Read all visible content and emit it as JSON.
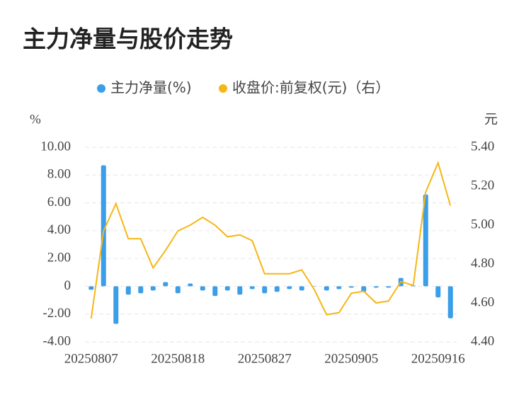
{
  "chart_data": {
    "type": "bar_line",
    "title": "主力净量与股价走势",
    "y_label": "%",
    "y2_label": "元",
    "categories": [
      "20250807",
      null,
      null,
      null,
      null,
      null,
      null,
      "20250818",
      null,
      null,
      null,
      null,
      null,
      null,
      "20250827",
      null,
      null,
      null,
      null,
      null,
      null,
      "20250905",
      null,
      null,
      null,
      null,
      null,
      null,
      "20250916",
      null
    ],
    "series": [
      {
        "name": "主力净量(%)",
        "type": "bar",
        "color": "#3b9ee9",
        "values": [
          -0.25,
          8.7,
          -2.7,
          -0.6,
          -0.5,
          -0.3,
          0.3,
          -0.5,
          0.2,
          -0.3,
          -0.7,
          -0.3,
          -0.6,
          -0.2,
          -0.5,
          -0.4,
          -0.2,
          -0.3,
          0,
          -0.3,
          -0.2,
          -0.1,
          -0.4,
          -0.1,
          -0.1,
          0.6,
          0.05,
          6.6,
          -0.8,
          -2.3
        ]
      },
      {
        "name": "收盘价:前复权(元)（右）",
        "type": "line",
        "axis": "y2",
        "color": "#f5b716",
        "values": [
          4.52,
          4.97,
          5.11,
          4.93,
          4.93,
          4.78,
          4.87,
          4.97,
          5.0,
          5.04,
          5.0,
          4.94,
          4.95,
          4.92,
          4.75,
          4.75,
          4.75,
          4.77,
          4.67,
          4.54,
          4.55,
          4.65,
          4.66,
          4.6,
          4.61,
          4.71,
          4.69,
          5.17,
          5.32,
          5.1
        ]
      }
    ],
    "ylim": [
      -4,
      10
    ],
    "yticks": [
      {
        "value": 10,
        "label": "10.00"
      },
      {
        "value": 8,
        "label": "8.00"
      },
      {
        "value": 6,
        "label": "6.00"
      },
      {
        "value": 4,
        "label": "4.00"
      },
      {
        "value": 2,
        "label": "2.00"
      },
      0,
      {
        "value": -2,
        "label": "-2.00"
      },
      {
        "value": -4,
        "label": "-4.00"
      }
    ],
    "y2lim": [
      4.4,
      5.4
    ],
    "y2ticks": [
      {
        "value": 5.4,
        "label": "5.40"
      },
      {
        "value": 5.2,
        "label": "5.20"
      },
      {
        "value": 5.0,
        "label": "5.00"
      },
      {
        "value": 4.8,
        "label": "4.80"
      },
      {
        "value": 4.6,
        "label": "4.60"
      },
      {
        "value": 4.4,
        "label": "4.40"
      }
    ],
    "grid": true,
    "legend": "top"
  }
}
